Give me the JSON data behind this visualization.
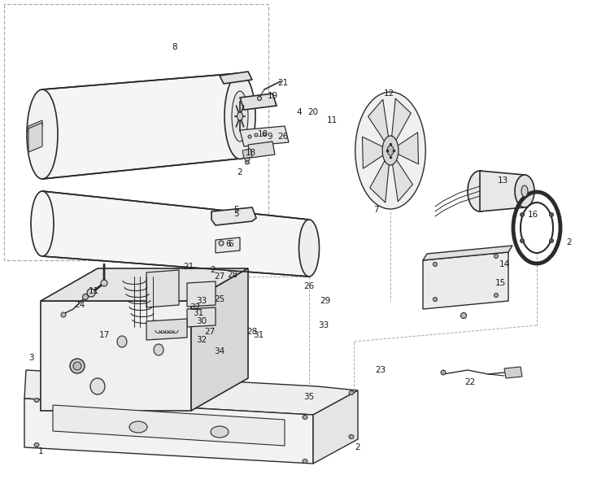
{
  "bg_color": "#ffffff",
  "line_color": "#2a2a2a",
  "dashed_color": "#aaaaaa",
  "figsize": [
    7.5,
    6.0
  ],
  "dpi": 100,
  "label_fontsize": 7.5,
  "label_color": "#1a1a1a"
}
